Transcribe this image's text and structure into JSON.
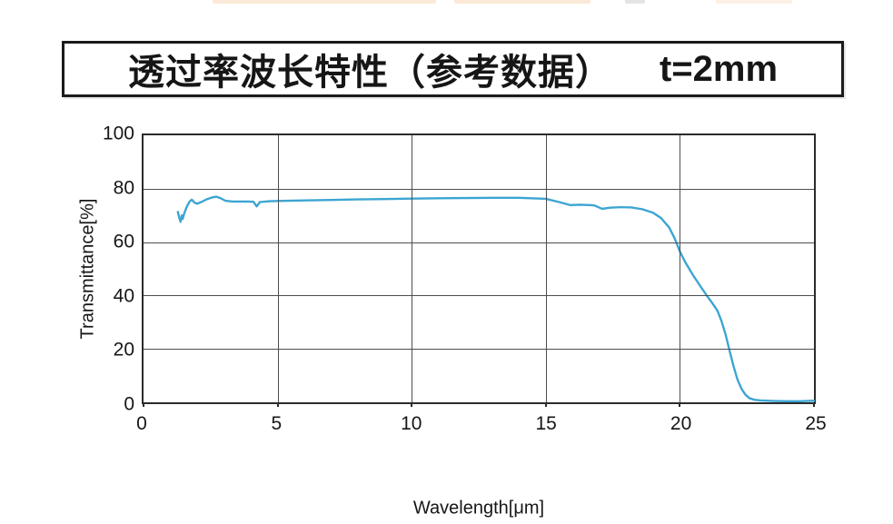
{
  "title": {
    "main": "透过率波长特性（参考数据）",
    "spec": "t=2mm"
  },
  "colors": {
    "curve": "#3ca5d2",
    "grid": "#4d4d4d",
    "axis": "#2b2b2b",
    "text": "#161616",
    "title_border": "#1b1b1b"
  },
  "chart_data": {
    "type": "line",
    "title": "透过率波长特性（参考数据） t=2mm",
    "xlabel": "Wavelength[μm]",
    "ylabel": "Transmittance[%]",
    "xlim": [
      0,
      25
    ],
    "ylim": [
      0,
      100
    ],
    "x_ticks": [
      0,
      5,
      10,
      15,
      20,
      25
    ],
    "y_ticks": [
      0,
      20,
      40,
      60,
      80,
      100
    ],
    "grid": true,
    "legend": "none",
    "line_color": "#3ca5d2",
    "series": [
      {
        "name": "transmittance",
        "points": [
          [
            1.28,
            71.3
          ],
          [
            1.33,
            69.2
          ],
          [
            1.38,
            67.6
          ],
          [
            1.43,
            70.0
          ],
          [
            1.46,
            68.7
          ],
          [
            1.52,
            70.8
          ],
          [
            1.62,
            73.4
          ],
          [
            1.72,
            75.2
          ],
          [
            1.8,
            75.9
          ],
          [
            1.9,
            74.8
          ],
          [
            2.0,
            74.4
          ],
          [
            2.15,
            75.0
          ],
          [
            2.35,
            76.0
          ],
          [
            2.55,
            76.7
          ],
          [
            2.72,
            77.0
          ],
          [
            2.88,
            76.4
          ],
          [
            3.05,
            75.5
          ],
          [
            3.3,
            75.2
          ],
          [
            3.6,
            75.2
          ],
          [
            3.9,
            75.2
          ],
          [
            4.1,
            75.1
          ],
          [
            4.22,
            73.4
          ],
          [
            4.34,
            75.0
          ],
          [
            4.7,
            75.3
          ],
          [
            5.0,
            75.4
          ],
          [
            6.0,
            75.6
          ],
          [
            7.0,
            75.8
          ],
          [
            8.0,
            76.0
          ],
          [
            9.0,
            76.1
          ],
          [
            10.0,
            76.3
          ],
          [
            11.0,
            76.4
          ],
          [
            12.0,
            76.5
          ],
          [
            13.0,
            76.6
          ],
          [
            14.0,
            76.6
          ],
          [
            15.0,
            76.2
          ],
          [
            15.5,
            75.0
          ],
          [
            15.9,
            73.9
          ],
          [
            16.3,
            74.0
          ],
          [
            16.8,
            73.8
          ],
          [
            17.1,
            72.5
          ],
          [
            17.4,
            72.9
          ],
          [
            17.8,
            73.1
          ],
          [
            18.2,
            73.0
          ],
          [
            18.6,
            72.3
          ],
          [
            19.0,
            71.0
          ],
          [
            19.3,
            69.0
          ],
          [
            19.6,
            65.5
          ],
          [
            19.8,
            61.5
          ],
          [
            20.0,
            56.5
          ],
          [
            20.2,
            52.5
          ],
          [
            20.5,
            47.5
          ],
          [
            20.8,
            43.0
          ],
          [
            21.0,
            40.0
          ],
          [
            21.2,
            37.3
          ],
          [
            21.4,
            34.3
          ],
          [
            21.55,
            30.5
          ],
          [
            21.7,
            25.5
          ],
          [
            21.85,
            19.5
          ],
          [
            22.0,
            13.5
          ],
          [
            22.15,
            8.5
          ],
          [
            22.3,
            5.0
          ],
          [
            22.45,
            2.8
          ],
          [
            22.6,
            1.5
          ],
          [
            22.8,
            0.9
          ],
          [
            23.0,
            0.7
          ],
          [
            23.5,
            0.5
          ],
          [
            24.0,
            0.4
          ],
          [
            24.5,
            0.4
          ],
          [
            25.0,
            0.6
          ]
        ]
      }
    ]
  }
}
